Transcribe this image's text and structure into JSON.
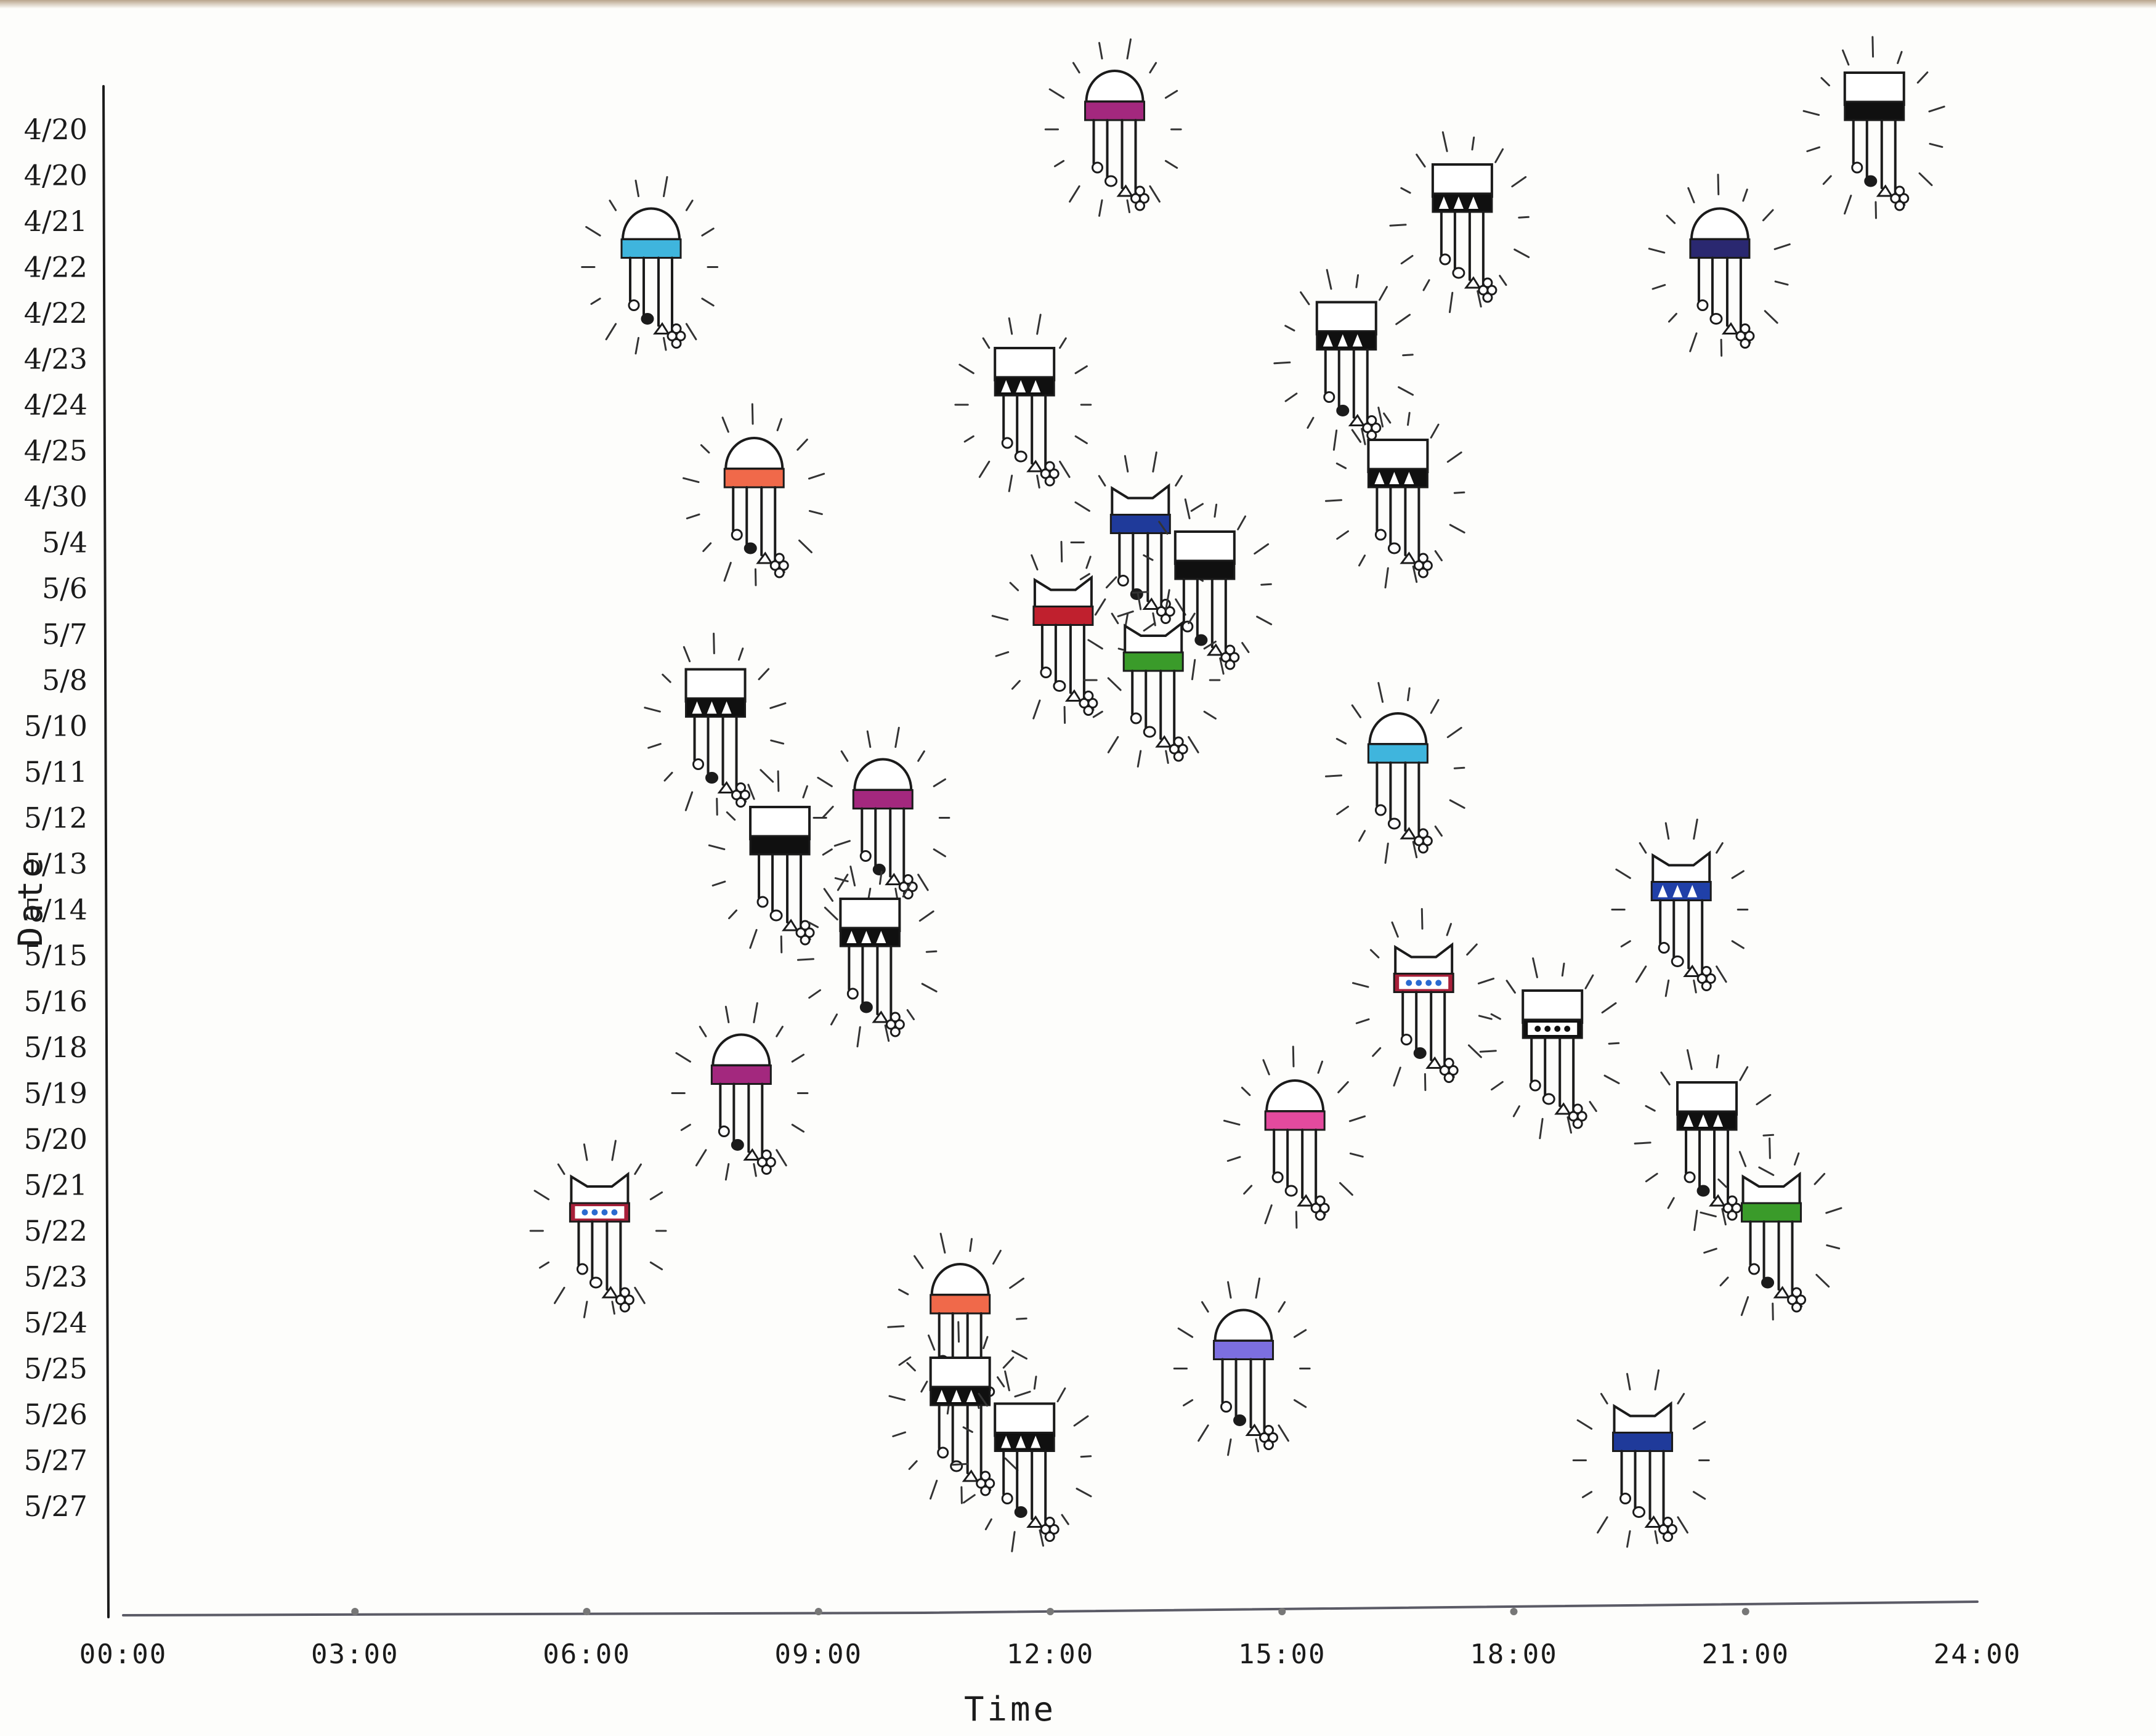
{
  "chart_data": {
    "type": "scatter",
    "xlabel": "Time",
    "ylabel": "Date",
    "x_ticks": [
      "00:00",
      "03:00",
      "06:00",
      "09:00",
      "12:00",
      "15:00",
      "18:00",
      "21:00",
      "24:00"
    ],
    "y_ticks": [
      "4/20",
      "4/20",
      "4/21",
      "4/22",
      "4/22",
      "4/23",
      "4/24",
      "4/25",
      "4/30",
      "5/4",
      "5/6",
      "5/7",
      "5/8",
      "5/10",
      "5/11",
      "5/12",
      "5/13",
      "5/14",
      "5/15",
      "5/16",
      "5/18",
      "5/19",
      "5/20",
      "5/21",
      "5/22",
      "5/23",
      "5/24",
      "5/25",
      "5/26",
      "5/27",
      "5/27"
    ],
    "xlim": [
      "00:00",
      "24:00"
    ],
    "grid": false,
    "legend": "none",
    "points": [
      {
        "x": "12:50",
        "y": "4/20",
        "head": "dome",
        "band": "#a3287e",
        "pattern": "solid"
      },
      {
        "x": "22:40",
        "y": "4/20",
        "head": "flat",
        "band": "#101010",
        "pattern": "solid"
      },
      {
        "x": "17:20",
        "y": "4/21",
        "head": "flat",
        "band": "#101010",
        "pattern": "triangles"
      },
      {
        "x": "06:50",
        "y": "4/22",
        "head": "dome",
        "band": "#3fb5dd",
        "pattern": "solid"
      },
      {
        "x": "20:40",
        "y": "4/22",
        "head": "dome",
        "band": "#2a2870",
        "pattern": "solid"
      },
      {
        "x": "15:50",
        "y": "4/23",
        "head": "flat",
        "band": "#101010",
        "pattern": "triangles"
      },
      {
        "x": "11:40",
        "y": "4/24",
        "head": "flat",
        "band": "#101010",
        "pattern": "triangles"
      },
      {
        "x": "08:10",
        "y": "4/30",
        "head": "dome",
        "band": "#f0694a",
        "pattern": "solid"
      },
      {
        "x": "16:30",
        "y": "4/30",
        "head": "flat",
        "band": "#101010",
        "pattern": "triangles"
      },
      {
        "x": "13:10",
        "y": "5/4",
        "head": "cat",
        "band": "#1f3a9a",
        "pattern": "solid"
      },
      {
        "x": "12:10",
        "y": "5/7",
        "head": "cat",
        "band": "#c0202e",
        "pattern": "solid"
      },
      {
        "x": "14:00",
        "y": "5/6",
        "head": "flat",
        "band": "#101010",
        "pattern": "solid"
      },
      {
        "x": "13:20",
        "y": "5/8",
        "head": "cat",
        "band": "#3a9b2a",
        "pattern": "solid"
      },
      {
        "x": "07:40",
        "y": "5/10",
        "head": "flat",
        "band": "#101010",
        "pattern": "triangles"
      },
      {
        "x": "16:30",
        "y": "5/11",
        "head": "dome",
        "band": "#3fb5dd",
        "pattern": "solid"
      },
      {
        "x": "09:50",
        "y": "5/12",
        "head": "dome",
        "band": "#a3287e",
        "pattern": "solid"
      },
      {
        "x": "08:30",
        "y": "5/13",
        "head": "flat",
        "band": "#101010",
        "pattern": "solid"
      },
      {
        "x": "09:40",
        "y": "5/15",
        "head": "flat",
        "band": "#101010",
        "pattern": "triangles"
      },
      {
        "x": "20:10",
        "y": "5/14",
        "head": "cat",
        "band": "#2040a8",
        "pattern": "triangles"
      },
      {
        "x": "16:50",
        "y": "5/16",
        "head": "cat",
        "band": "#a8203a",
        "pattern": "dots"
      },
      {
        "x": "18:30",
        "y": "5/18",
        "head": "flat",
        "band": "#101010",
        "pattern": "dots"
      },
      {
        "x": "08:00",
        "y": "5/19",
        "head": "dome",
        "band": "#a3287e",
        "pattern": "solid"
      },
      {
        "x": "15:10",
        "y": "5/20",
        "head": "dome",
        "band": "#e34a9e",
        "pattern": "solid"
      },
      {
        "x": "20:30",
        "y": "5/20",
        "head": "flat",
        "band": "#101010",
        "pattern": "triangles"
      },
      {
        "x": "06:10",
        "y": "5/22",
        "head": "cat",
        "band": "#a8203a",
        "pattern": "dots"
      },
      {
        "x": "21:20",
        "y": "5/22",
        "head": "cat",
        "band": "#3a9b2a",
        "pattern": "solid"
      },
      {
        "x": "10:50",
        "y": "5/24",
        "head": "dome",
        "band": "#f0694a",
        "pattern": "solid"
      },
      {
        "x": "14:30",
        "y": "5/25",
        "head": "dome",
        "band": "#7c6fe0",
        "pattern": "solid"
      },
      {
        "x": "10:50",
        "y": "5/26",
        "head": "flat",
        "band": "#101010",
        "pattern": "triangles"
      },
      {
        "x": "11:40",
        "y": "5/27",
        "head": "flat",
        "band": "#101010",
        "pattern": "triangles"
      },
      {
        "x": "19:40",
        "y": "5/27",
        "head": "cat",
        "band": "#1f3a9a",
        "pattern": "solid"
      }
    ]
  }
}
